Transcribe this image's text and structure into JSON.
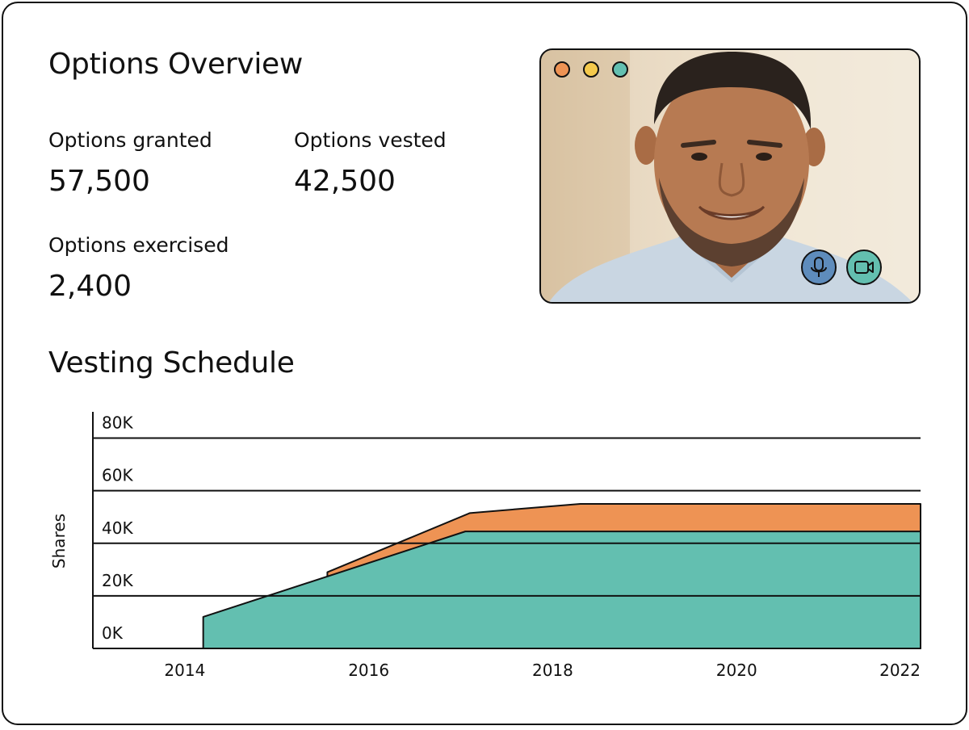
{
  "overview": {
    "title": "Options Overview",
    "metrics": [
      {
        "label": "Options granted",
        "value": "57,500"
      },
      {
        "label": "Options vested",
        "value": "42,500"
      },
      {
        "label": "Options exercised",
        "value": "2,400"
      }
    ]
  },
  "video_call": {
    "window_dots": [
      {
        "name": "orange-dot",
        "color": "#ee9354"
      },
      {
        "name": "yellow-dot",
        "color": "#f4c94c"
      },
      {
        "name": "teal-dot",
        "color": "#63bfb0"
      }
    ],
    "controls": [
      {
        "name": "microphone-icon",
        "color": "#5e8cbc"
      },
      {
        "name": "video-camera-icon",
        "color": "#63bfb0"
      }
    ]
  },
  "vesting": {
    "title": "Vesting Schedule"
  },
  "chart_data": {
    "type": "area",
    "stacked": true,
    "ylabel": "Shares",
    "xlabel": "",
    "ylim": [
      0,
      90000
    ],
    "xlim": [
      2013,
      2022
    ],
    "y_ticks": [
      0,
      20000,
      40000,
      60000,
      80000
    ],
    "y_tick_labels": [
      "0K",
      "20K",
      "40K",
      "60K",
      "80K"
    ],
    "x_ticks": [
      2014,
      2016,
      2018,
      2020,
      2022
    ],
    "x_tick_labels": [
      "2014",
      "2016",
      "2018",
      "2020",
      "2022"
    ],
    "grid": true,
    "series": [
      {
        "color": "#63bfb0",
        "points": [
          [
            2014.2,
            0
          ],
          [
            2014.2,
            12000
          ],
          [
            2017.05,
            44500
          ],
          [
            2022,
            44500
          ]
        ]
      },
      {
        "color": "#ee9354",
        "points": [
          [
            2015.55,
            27000
          ],
          [
            2015.55,
            29000
          ],
          [
            2017.1,
            51500
          ],
          [
            2018.3,
            55000
          ],
          [
            2022,
            55000
          ]
        ]
      }
    ]
  }
}
